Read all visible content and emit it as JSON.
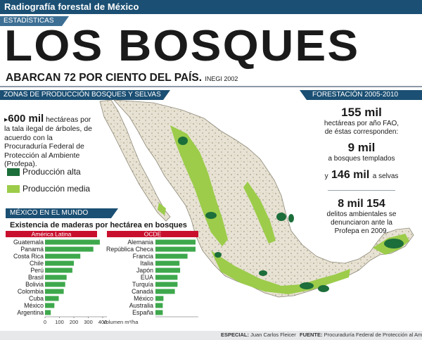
{
  "header": {
    "top_title": "Radiografía forestal de México",
    "section_tag": "ESTADÍSTICAS",
    "main_title": "LOS BOSQUES",
    "subtitle": "ABARCAN 72 POR CIENTO DEL PAÍS.",
    "subtitle_source": "INEGI 2002"
  },
  "zones": {
    "bar_label": "ZONAS DE PRODUCCIÓN BOSQUES Y SELVAS",
    "highlight": "600 mil",
    "text": "hectáreas por la tala ilegal de árboles, de acuerdo con la Procuraduría Federal de Protección al Ambiente (Profepa).",
    "legend": [
      {
        "label": "Producción alta",
        "color": "#1c6e3a"
      },
      {
        "label": "Producción media",
        "color": "#9ccc4a"
      }
    ]
  },
  "reforestation": {
    "bar_label": "FORESTACIÓN 2005-2010",
    "total": "155 mil",
    "total_text": "hectáreas por año FAO, de éstas corresponden:",
    "temperate": "9 mil",
    "temperate_text": "a bosques templados",
    "y_word": "y",
    "tropical": "146 mil",
    "tropical_text": "a selvas",
    "crimes": "8 mil 154",
    "crimes_text": "delitos ambientales se denunciaron ante la Profepa en 2009."
  },
  "world": {
    "bar_label": "MÉXICO EN EL MUNDO",
    "chart_title": "Existencia de maderas por hectárea en bosques"
  },
  "chart_data": [
    {
      "type": "bar",
      "orientation": "horizontal",
      "title": "América Latina",
      "categories": [
        "Guatemala",
        "Panamá",
        "Costa Rica",
        "Chile",
        "Perú",
        "Brasil",
        "Bolivia",
        "Colombia",
        "Cuba",
        "México",
        "Argentina"
      ],
      "values": [
        380,
        335,
        245,
        200,
        190,
        150,
        140,
        130,
        95,
        65,
        40
      ],
      "xticks": [
        0,
        100,
        200,
        300,
        400
      ],
      "xlim": [
        0,
        430
      ],
      "color": "#3ea84c"
    },
    {
      "type": "bar",
      "orientation": "horizontal",
      "title": "OCDE",
      "categories": [
        "Alemania",
        "República Checa",
        "Francia",
        "Italia",
        "Japón",
        "EUA",
        "Turquía",
        "Canadá",
        "México",
        "Australia",
        "España"
      ],
      "values": [
        300,
        300,
        240,
        180,
        185,
        165,
        165,
        145,
        60,
        55,
        55
      ],
      "xlabel": "Volumen m³/ha",
      "xlim": [
        0,
        320
      ],
      "color": "#3ea84c"
    }
  ],
  "footer": {
    "special_label": "ESPECIAL:",
    "special_name": "Juan Carlos Fleicer",
    "source_label": "FUENTE:",
    "source_name": "Procuraduría Federal de Protección al Ambiente"
  },
  "colors": {
    "navy": "#1b4f73",
    "latam_header": "#c8102e",
    "ocde_header": "#c8102e"
  }
}
